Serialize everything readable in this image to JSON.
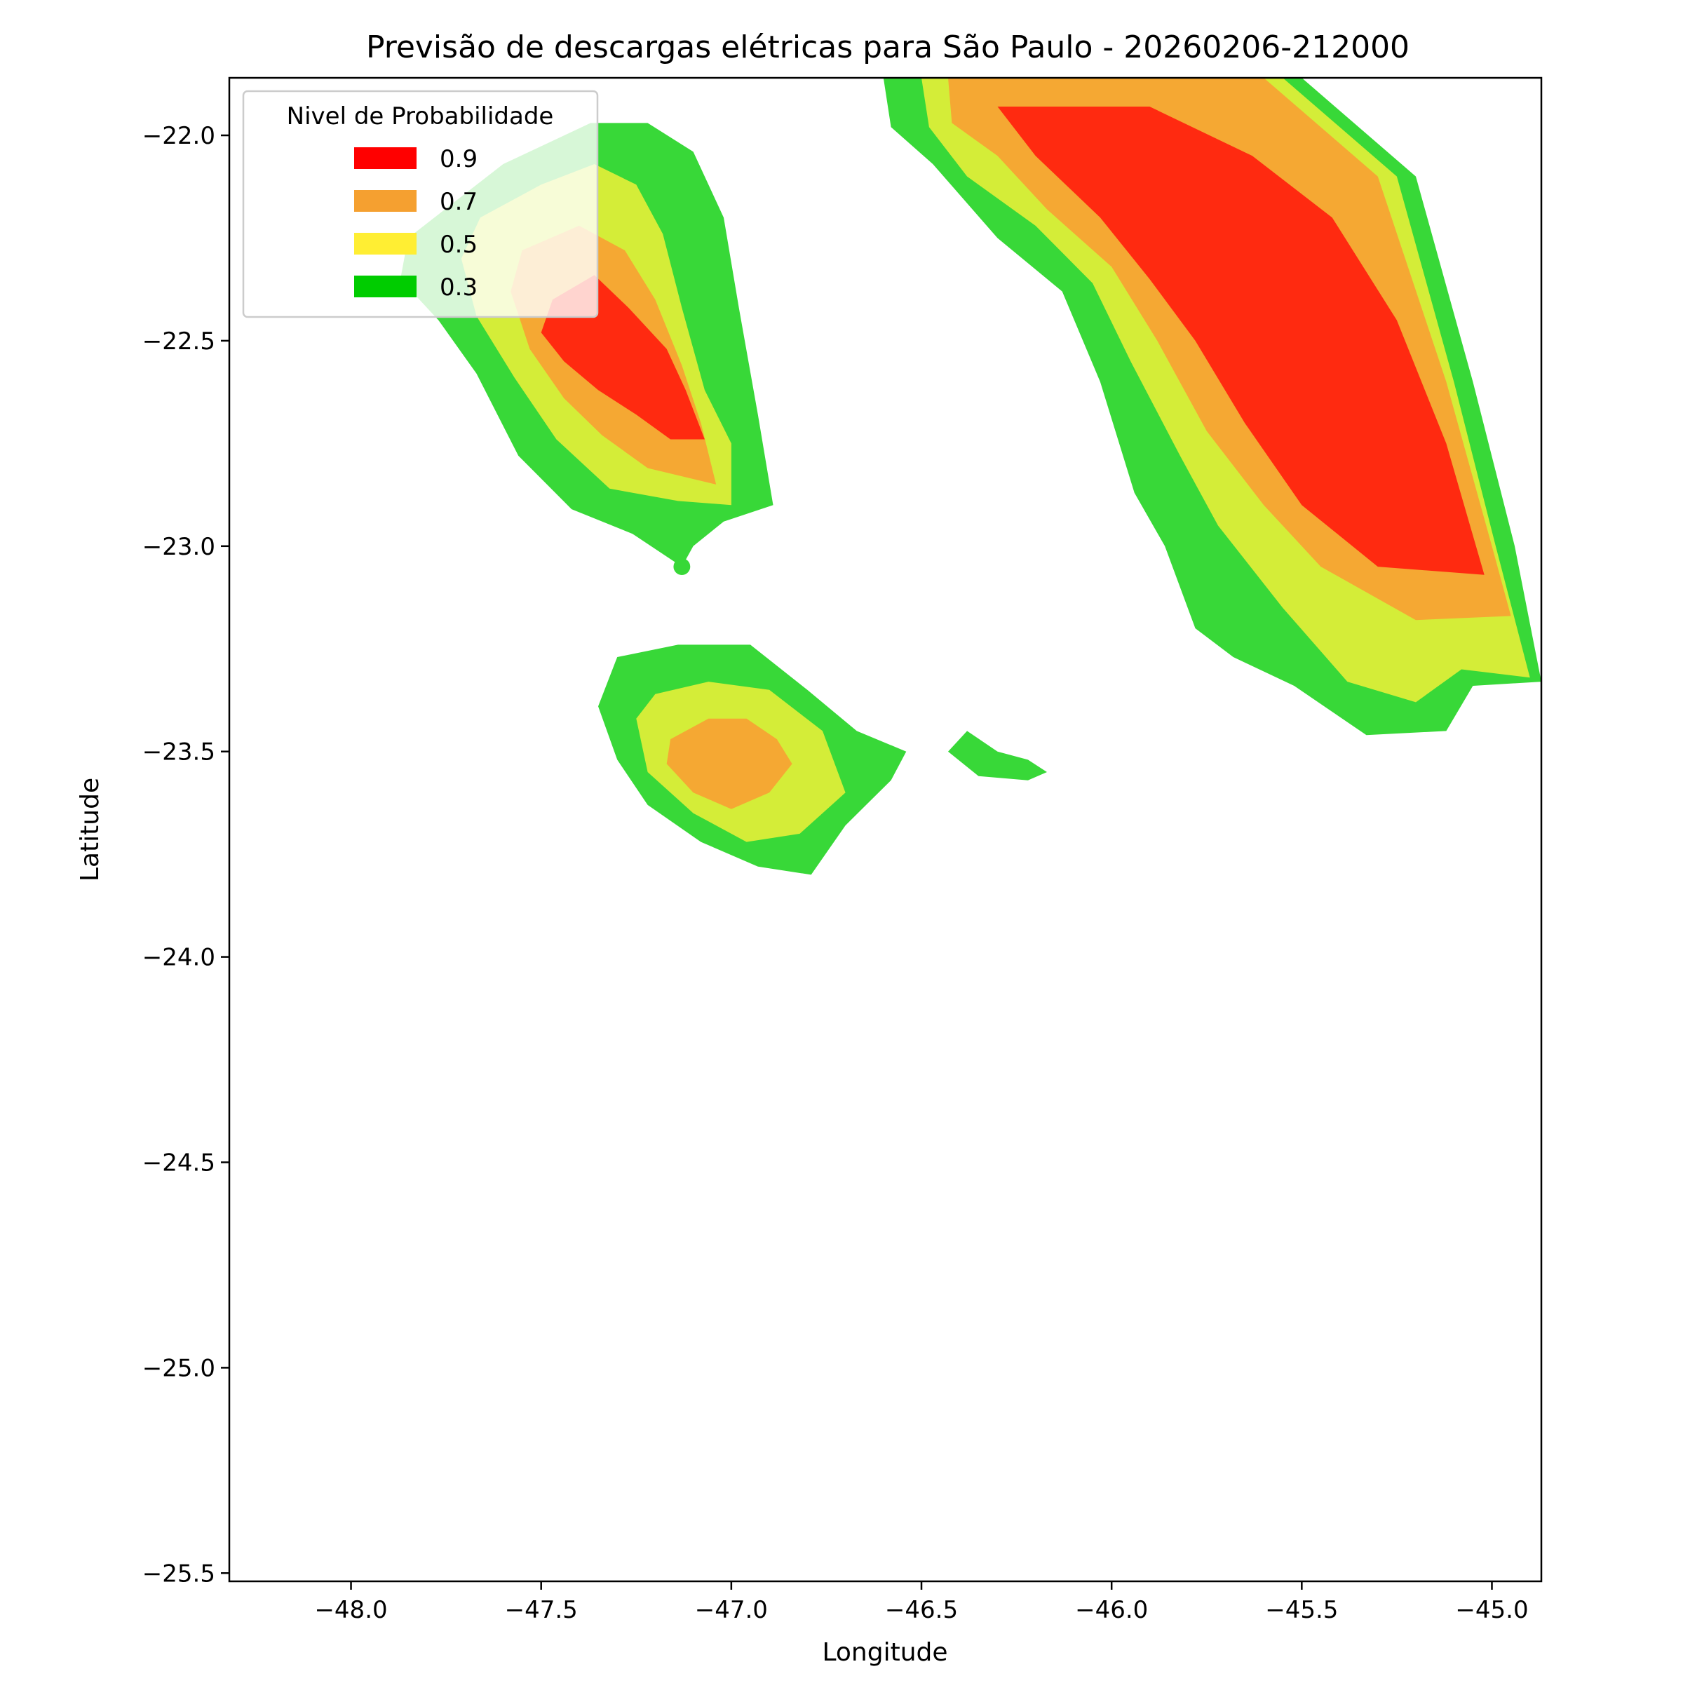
{
  "chart_data": {
    "type": "filled-contour-map",
    "title": "Previsão de descargas elétricas para São Paulo - 20260206-212000",
    "xlabel": "Longitude",
    "ylabel": "Latitude",
    "xlim": [
      -48.32,
      -44.87
    ],
    "ylim": [
      -25.52,
      -21.86
    ],
    "xticks": [
      -48.0,
      -47.5,
      -47.0,
      -46.5,
      -46.0,
      -45.5,
      -45.0
    ],
    "xtick_labels": [
      "−48.0",
      "−47.5",
      "−47.0",
      "−46.5",
      "−46.0",
      "−45.5",
      "−45.0"
    ],
    "yticks": [
      -22.0,
      -22.5,
      -23.0,
      -23.5,
      -24.0,
      -24.5,
      -25.0,
      -25.5
    ],
    "ytick_labels": [
      "−22.0",
      "−22.5",
      "−23.0",
      "−23.5",
      "−24.0",
      "−24.5",
      "−25.0",
      "−25.5"
    ],
    "grid": false,
    "legend": {
      "title": "Nivel de Probabilidade",
      "placement": "top-left",
      "entries": [
        {
          "label": "0.9",
          "color": "#ff0000"
        },
        {
          "label": "0.7",
          "color": "#f5a030"
        },
        {
          "label": "0.5",
          "color": "#ffee33"
        },
        {
          "label": "0.3",
          "color": "#00cc00"
        }
      ]
    },
    "level_colors": {
      "0.3": "#38d838",
      "0.5": "#d4ed38",
      "0.7": "#f5a833",
      "0.9": "#ff2a10"
    },
    "regions": [
      {
        "name": "northwest-cell",
        "bands": [
          {
            "level": "0.3",
            "polygon": [
              [
                -47.85,
                -22.25
              ],
              [
                -47.6,
                -22.07
              ],
              [
                -47.37,
                -21.97
              ],
              [
                -47.22,
                -21.97
              ],
              [
                -47.1,
                -22.04
              ],
              [
                -47.02,
                -22.2
              ],
              [
                -46.98,
                -22.42
              ],
              [
                -46.93,
                -22.68
              ],
              [
                -46.89,
                -22.9
              ],
              [
                -47.02,
                -22.94
              ],
              [
                -47.1,
                -23.0
              ],
              [
                -47.13,
                -23.05
              ],
              [
                -47.26,
                -22.97
              ],
              [
                -47.42,
                -22.91
              ],
              [
                -47.56,
                -22.78
              ],
              [
                -47.67,
                -22.58
              ],
              [
                -47.77,
                -22.45
              ],
              [
                -47.87,
                -22.35
              ]
            ]
          },
          {
            "level": "0.5",
            "polygon": [
              [
                -47.66,
                -22.2
              ],
              [
                -47.5,
                -22.12
              ],
              [
                -47.36,
                -22.07
              ],
              [
                -47.25,
                -22.12
              ],
              [
                -47.18,
                -22.24
              ],
              [
                -47.13,
                -22.42
              ],
              [
                -47.07,
                -22.62
              ],
              [
                -47.0,
                -22.75
              ],
              [
                -47.0,
                -22.9
              ],
              [
                -47.14,
                -22.89
              ],
              [
                -47.32,
                -22.86
              ],
              [
                -47.46,
                -22.74
              ],
              [
                -47.57,
                -22.59
              ],
              [
                -47.67,
                -22.44
              ],
              [
                -47.71,
                -22.3
              ]
            ]
          },
          {
            "level": "0.7",
            "polygon": [
              [
                -47.55,
                -22.28
              ],
              [
                -47.4,
                -22.22
              ],
              [
                -47.28,
                -22.28
              ],
              [
                -47.2,
                -22.4
              ],
              [
                -47.13,
                -22.56
              ],
              [
                -47.08,
                -22.7
              ],
              [
                -47.04,
                -22.85
              ],
              [
                -47.22,
                -22.81
              ],
              [
                -47.34,
                -22.73
              ],
              [
                -47.44,
                -22.64
              ],
              [
                -47.53,
                -22.52
              ],
              [
                -47.58,
                -22.38
              ]
            ]
          },
          {
            "level": "0.9",
            "polygon": [
              [
                -47.47,
                -22.4
              ],
              [
                -47.36,
                -22.34
              ],
              [
                -47.27,
                -22.42
              ],
              [
                -47.17,
                -22.52
              ],
              [
                -47.12,
                -22.62
              ],
              [
                -47.07,
                -22.74
              ],
              [
                -47.16,
                -22.74
              ],
              [
                -47.25,
                -22.68
              ],
              [
                -47.35,
                -22.62
              ],
              [
                -47.44,
                -22.55
              ],
              [
                -47.5,
                -22.48
              ]
            ]
          }
        ]
      },
      {
        "name": "small-dot",
        "bands": [
          {
            "level": "0.3",
            "circle": {
              "lon": -47.13,
              "lat": -23.05,
              "r_deg": 0.022
            }
          }
        ]
      },
      {
        "name": "central-cell",
        "bands": [
          {
            "level": "0.3",
            "polygon": [
              [
                -47.35,
                -23.39
              ],
              [
                -47.3,
                -23.27
              ],
              [
                -47.14,
                -23.24
              ],
              [
                -46.95,
                -23.24
              ],
              [
                -46.8,
                -23.35
              ],
              [
                -46.67,
                -23.45
              ],
              [
                -46.54,
                -23.5
              ],
              [
                -46.58,
                -23.57
              ],
              [
                -46.7,
                -23.68
              ],
              [
                -46.79,
                -23.8
              ],
              [
                -46.93,
                -23.78
              ],
              [
                -47.08,
                -23.72
              ],
              [
                -47.22,
                -23.63
              ],
              [
                -47.3,
                -23.52
              ]
            ]
          },
          {
            "level": "0.5",
            "polygon": [
              [
                -47.25,
                -23.42
              ],
              [
                -47.2,
                -23.36
              ],
              [
                -47.06,
                -23.33
              ],
              [
                -46.9,
                -23.35
              ],
              [
                -46.76,
                -23.45
              ],
              [
                -46.7,
                -23.6
              ],
              [
                -46.82,
                -23.7
              ],
              [
                -46.96,
                -23.72
              ],
              [
                -47.1,
                -23.65
              ],
              [
                -47.22,
                -23.55
              ]
            ]
          },
          {
            "level": "0.7",
            "polygon": [
              [
                -47.16,
                -23.47
              ],
              [
                -47.06,
                -23.42
              ],
              [
                -46.96,
                -23.42
              ],
              [
                -46.88,
                -23.47
              ],
              [
                -46.84,
                -23.53
              ],
              [
                -46.9,
                -23.6
              ],
              [
                -47.0,
                -23.64
              ],
              [
                -47.1,
                -23.6
              ],
              [
                -47.17,
                -23.53
              ]
            ]
          }
        ]
      },
      {
        "name": "east-fragment",
        "bands": [
          {
            "level": "0.3",
            "polygon": [
              [
                -46.43,
                -23.5
              ],
              [
                -46.38,
                -23.45
              ],
              [
                -46.3,
                -23.5
              ],
              [
                -46.22,
                -23.52
              ],
              [
                -46.17,
                -23.55
              ],
              [
                -46.22,
                -23.57
              ],
              [
                -46.35,
                -23.56
              ]
            ]
          }
        ]
      },
      {
        "name": "northeast-cell",
        "bands": [
          {
            "level": "0.3",
            "polygon": [
              [
                -46.6,
                -21.86
              ],
              [
                -45.5,
                -21.86
              ],
              [
                -45.2,
                -22.1
              ],
              [
                -45.05,
                -22.6
              ],
              [
                -44.94,
                -23.0
              ],
              [
                -44.87,
                -23.33
              ],
              [
                -45.05,
                -23.34
              ],
              [
                -45.12,
                -23.45
              ],
              [
                -45.33,
                -23.46
              ],
              [
                -45.52,
                -23.34
              ],
              [
                -45.68,
                -23.27
              ],
              [
                -45.78,
                -23.2
              ],
              [
                -45.86,
                -23.0
              ],
              [
                -45.94,
                -22.87
              ],
              [
                -46.03,
                -22.6
              ],
              [
                -46.13,
                -22.38
              ],
              [
                -46.3,
                -22.25
              ],
              [
                -46.47,
                -22.07
              ],
              [
                -46.58,
                -21.98
              ]
            ]
          },
          {
            "level": "0.5",
            "polygon": [
              [
                -46.5,
                -21.86
              ],
              [
                -45.55,
                -21.86
              ],
              [
                -45.25,
                -22.1
              ],
              [
                -45.1,
                -22.6
              ],
              [
                -44.99,
                -23.0
              ],
              [
                -44.9,
                -23.32
              ],
              [
                -45.08,
                -23.3
              ],
              [
                -45.2,
                -23.38
              ],
              [
                -45.38,
                -23.33
              ],
              [
                -45.55,
                -23.15
              ],
              [
                -45.72,
                -22.95
              ],
              [
                -45.82,
                -22.78
              ],
              [
                -45.95,
                -22.55
              ],
              [
                -46.05,
                -22.36
              ],
              [
                -46.2,
                -22.22
              ],
              [
                -46.38,
                -22.1
              ],
              [
                -46.48,
                -21.98
              ]
            ]
          },
          {
            "level": "0.7",
            "polygon": [
              [
                -46.43,
                -21.86
              ],
              [
                -45.6,
                -21.86
              ],
              [
                -45.3,
                -22.1
              ],
              [
                -45.12,
                -22.6
              ],
              [
                -45.0,
                -23.0
              ],
              [
                -44.95,
                -23.17
              ],
              [
                -45.2,
                -23.18
              ],
              [
                -45.45,
                -23.05
              ],
              [
                -45.6,
                -22.9
              ],
              [
                -45.75,
                -22.72
              ],
              [
                -45.88,
                -22.5
              ],
              [
                -46.0,
                -22.32
              ],
              [
                -46.17,
                -22.18
              ],
              [
                -46.3,
                -22.05
              ],
              [
                -46.42,
                -21.97
              ]
            ]
          },
          {
            "level": "0.9",
            "polygon": [
              [
                -46.3,
                -21.93
              ],
              [
                -45.9,
                -21.93
              ],
              [
                -45.63,
                -22.05
              ],
              [
                -45.42,
                -22.2
              ],
              [
                -45.25,
                -22.45
              ],
              [
                -45.12,
                -22.75
              ],
              [
                -45.02,
                -23.07
              ],
              [
                -45.3,
                -23.05
              ],
              [
                -45.5,
                -22.9
              ],
              [
                -45.65,
                -22.7
              ],
              [
                -45.78,
                -22.5
              ],
              [
                -45.9,
                -22.35
              ],
              [
                -46.03,
                -22.2
              ],
              [
                -46.2,
                -22.05
              ]
            ]
          }
        ]
      }
    ]
  }
}
